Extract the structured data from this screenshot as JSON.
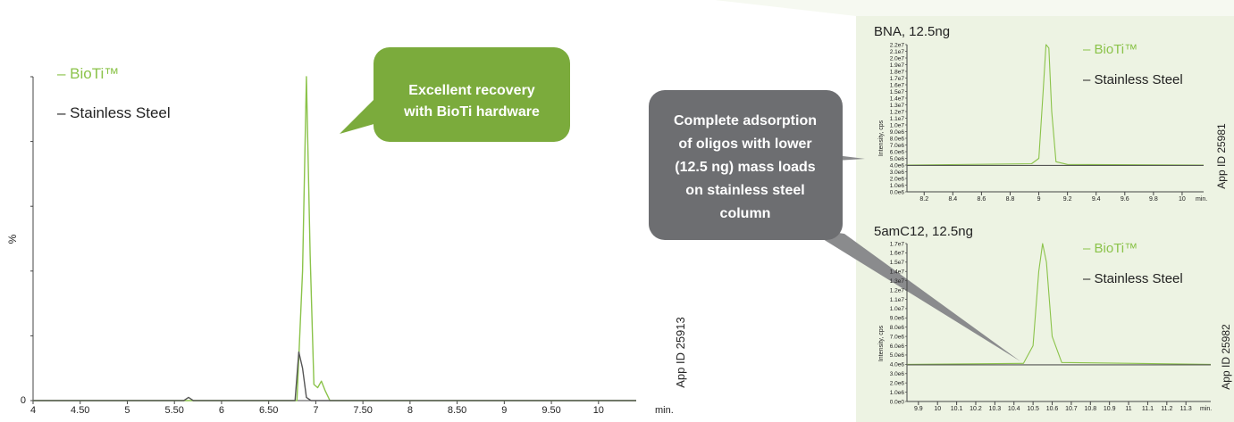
{
  "colors": {
    "bioti": "#8bc34a",
    "steel": "#555555",
    "callout_green": "#7bab3c",
    "callout_gray": "#6d6e71",
    "panel_bg": "#edf3e3"
  },
  "callouts": {
    "green": [
      "Excellent recovery",
      "with BioTi hardware"
    ],
    "gray": [
      "Complete adsorption",
      "of oligos with lower",
      "(12.5 ng) mass loads",
      "on stainless steel",
      "column"
    ]
  },
  "chart_data": [
    {
      "type": "line",
      "legend": [
        "– BioTi™",
        "– Stainless Steel"
      ],
      "ylabel": "%",
      "x_unit_label": "min.",
      "x_ticks": [
        "4",
        "4.50",
        "5",
        "5.50",
        "6",
        "6.50",
        "7",
        "7.50",
        "8",
        "8.50",
        "9",
        "9.50",
        "10"
      ],
      "y_ticks": [
        "0"
      ],
      "xlim": [
        4,
        10.4
      ],
      "ylim": [
        0,
        100
      ],
      "app_id": "App ID 25913",
      "series": [
        {
          "name": "– BioTi™",
          "x": [
            4,
            6.8,
            6.86,
            6.9,
            6.94,
            6.98,
            7.02,
            7.06,
            7.1,
            7.15,
            10.4
          ],
          "y": [
            0,
            0,
            40,
            100,
            45,
            5,
            4,
            6,
            3,
            0,
            0
          ]
        },
        {
          "name": "– Stainless Steel",
          "x": [
            4,
            5.6,
            5.65,
            5.7,
            6.78,
            6.82,
            6.86,
            6.9,
            6.95,
            10.4
          ],
          "y": [
            0,
            0,
            1,
            0,
            0,
            15,
            10,
            1,
            0,
            0
          ]
        }
      ]
    },
    {
      "type": "line",
      "title": "BNA, 12.5ng",
      "legend": [
        "– BioTi™",
        "– Stainless Steel"
      ],
      "ylabel": "Intensity, cps",
      "x_unit_label": "min.",
      "x_ticks": [
        "8.2",
        "8.4",
        "8.6",
        "8.8",
        "9",
        "9.2",
        "9.4",
        "9.6",
        "9.8",
        "10"
      ],
      "y_ticks": [
        "0.0e6",
        "1.0e6",
        "2.0e6",
        "3.0e6",
        "4.0e6",
        "5.0e6",
        "6.0e6",
        "7.0e6",
        "8.0e6",
        "9.0e6",
        "1.0e7",
        "1.1e7",
        "1.2e7",
        "1.3e7",
        "1.4e7",
        "1.5e7",
        "1.6e7",
        "1.7e7",
        "1.8e7",
        "1.9e7",
        "2.0e7",
        "2.1e7",
        "2.2e7"
      ],
      "xlim": [
        8.08,
        10.15
      ],
      "ylim": [
        0,
        22000000
      ],
      "app_id": "App ID 25981",
      "series": [
        {
          "name": "– BioTi™",
          "x": [
            8.08,
            8.95,
            9.0,
            9.03,
            9.05,
            9.07,
            9.09,
            9.12,
            9.2,
            10.15
          ],
          "y": [
            4000000,
            4200000,
            5000000,
            15000000,
            22000000,
            21500000,
            12000000,
            4500000,
            4100000,
            4000000
          ]
        },
        {
          "name": "– Stainless Steel",
          "x": [
            8.08,
            10.15
          ],
          "y": [
            3950000,
            3950000
          ]
        }
      ]
    },
    {
      "type": "line",
      "title": "5amC12, 12.5ng",
      "legend": [
        "– BioTi™",
        "– Stainless Steel"
      ],
      "ylabel": "Intensity, cps",
      "x_unit_label": "min.",
      "x_ticks": [
        "9.9",
        "10",
        "10.1",
        "10.2",
        "10.3",
        "10.4",
        "10.5",
        "10.6",
        "10.7",
        "10.8",
        "10.9",
        "11",
        "11.1",
        "11.2",
        "11.3"
      ],
      "y_ticks": [
        "0.0e0",
        "1.0e6",
        "2.0e6",
        "3.0e6",
        "4.0e6",
        "5.0e6",
        "6.0e6",
        "7.0e6",
        "8.0e6",
        "9.0e6",
        "1.0e7",
        "1.1e7",
        "1.2e7",
        "1.3e7",
        "1.4e7",
        "1.5e7",
        "1.6e7",
        "1.7e7"
      ],
      "xlim": [
        9.84,
        11.43
      ],
      "ylim": [
        0,
        17000000
      ],
      "app_id": "App ID 25982",
      "series": [
        {
          "name": "– BioTi™",
          "x": [
            9.84,
            10.45,
            10.5,
            10.53,
            10.55,
            10.57,
            10.6,
            10.65,
            11.43
          ],
          "y": [
            4000000,
            4100000,
            6000000,
            14000000,
            17000000,
            15000000,
            7000000,
            4200000,
            4000000
          ]
        },
        {
          "name": "– Stainless Steel",
          "x": [
            9.84,
            11.43
          ],
          "y": [
            3950000,
            3950000
          ]
        }
      ]
    }
  ]
}
